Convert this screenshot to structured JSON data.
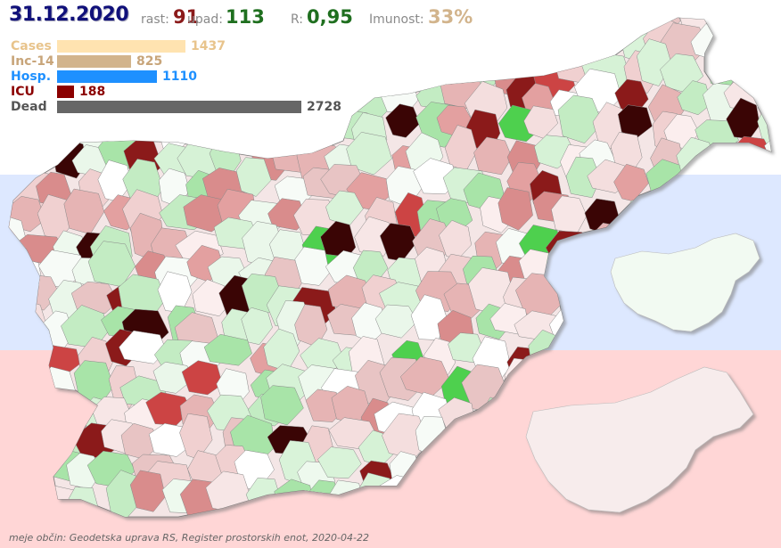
{
  "header": {
    "date": "31.12.2020",
    "rast_label": "rast:",
    "rast_value": "91",
    "upad_label": "upad:",
    "upad_value": "113",
    "r_label": "R:",
    "r_value": "0,95",
    "imunost_label": "Imunost:",
    "imunost_value": "33%"
  },
  "stats": [
    {
      "label": "Cases",
      "value": "1437",
      "color": "#ffe3b0",
      "label_color": "#e8c48c",
      "fraction": 0.527
    },
    {
      "label": "Inc-14",
      "value": "825",
      "color": "#d2b48c",
      "label_color": "#c8a57a",
      "fraction": 0.302
    },
    {
      "label": "Hosp.",
      "value": "1110",
      "color": "#1e90ff",
      "label_color": "#1e90ff",
      "fraction": 0.407
    },
    {
      "label": "ICU",
      "value": "188",
      "color": "#8b0000",
      "label_color": "#8b0000",
      "fraction": 0.069
    },
    {
      "label": "Dead",
      "value": "2728",
      "color": "#666666",
      "label_color": "#555555",
      "fraction": 1.0
    }
  ],
  "credit": "meje občin: Geodetska uprava RS, Register prostorskih enot, 2020-04-22",
  "colors": {
    "band_top": "#ffffff",
    "band_mid": "#dde8ff",
    "band_bot": "#ffd6d6",
    "dark_red": "#3a0000",
    "red": "#b22222",
    "pink": "#e8a0a0",
    "green": "#4ed04e",
    "light_green": "#c8f0c8"
  }
}
